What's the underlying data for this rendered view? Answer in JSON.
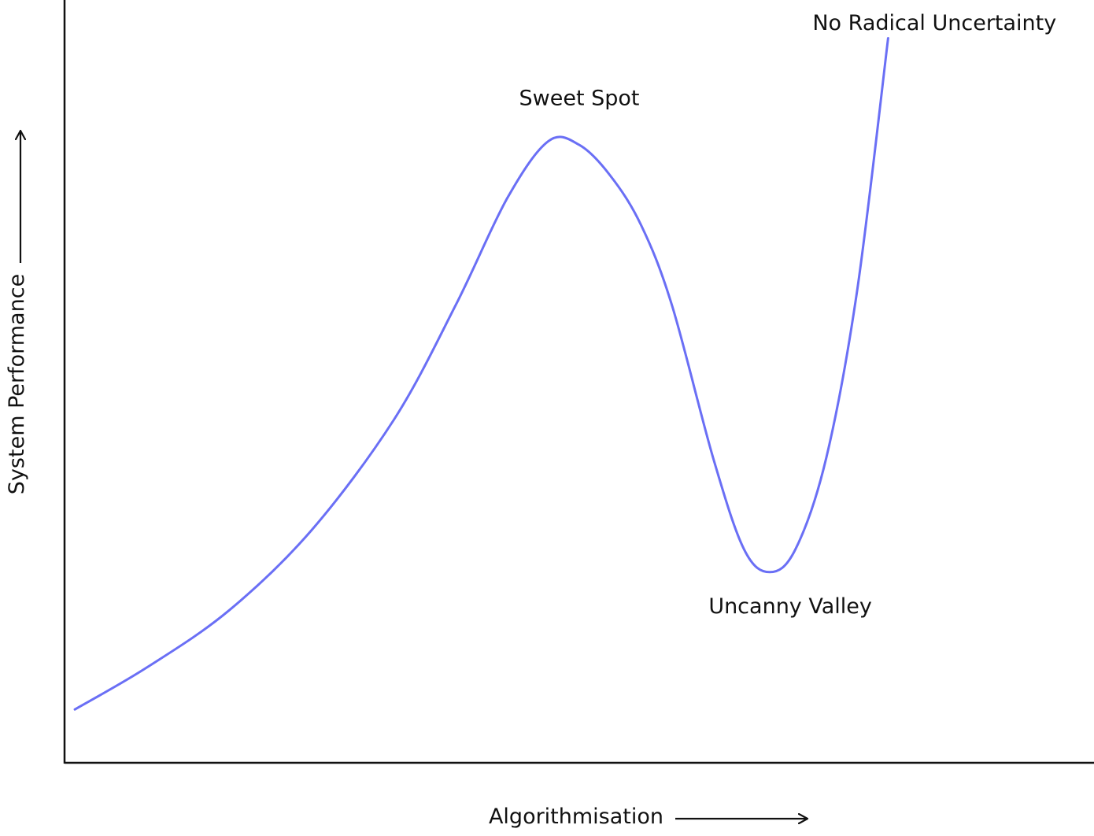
{
  "chart_data": {
    "type": "line",
    "title": "",
    "xlabel": "Algorithmisation",
    "ylabel": "System Performance",
    "axis_ticks": false,
    "grid": false,
    "legend": "none",
    "xlim": [
      0,
      100
    ],
    "ylim": [
      0,
      100
    ],
    "series": [
      {
        "color": "#6a6ff5",
        "points": [
          [
            1.0,
            7.0
          ],
          [
            8.0,
            12.5
          ],
          [
            16.0,
            20.0
          ],
          [
            24.0,
            30.5
          ],
          [
            32.0,
            45.0
          ],
          [
            38.0,
            60.0
          ],
          [
            43.0,
            74.0
          ],
          [
            47.0,
            81.5
          ],
          [
            50.0,
            81.0
          ],
          [
            53.0,
            77.0
          ],
          [
            56.0,
            70.5
          ],
          [
            59.0,
            60.0
          ],
          [
            63.0,
            40.0
          ],
          [
            66.0,
            28.0
          ],
          [
            68.5,
            25.0
          ],
          [
            71.0,
            28.0
          ],
          [
            74.0,
            40.0
          ],
          [
            77.0,
            62.0
          ],
          [
            80.0,
            95.0
          ]
        ]
      }
    ],
    "annotations": [
      {
        "text": "Sweet Spot",
        "x": 50.0,
        "y": 86.2,
        "anchor": "middle"
      },
      {
        "text": "Uncanny Valley",
        "x": 70.5,
        "y": 19.6,
        "anchor": "middle"
      },
      {
        "text": "No Radical Uncertainty",
        "x": 84.5,
        "y": 96.1,
        "anchor": "middle"
      }
    ]
  }
}
